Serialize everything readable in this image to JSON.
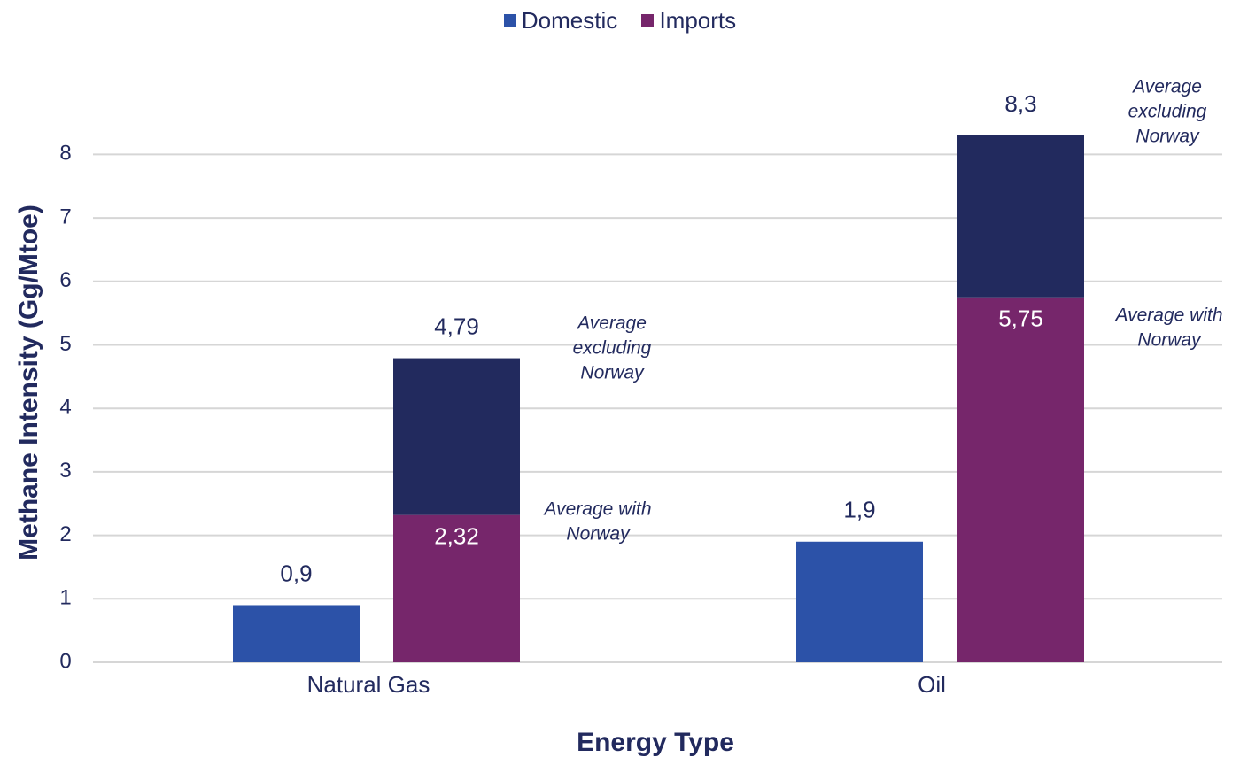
{
  "chart_data": {
    "type": "bar",
    "stacked": true,
    "categories": [
      "Natural Gas",
      "Oil"
    ],
    "xlabel": "Energy Type",
    "ylabel": "Methane Intensity (Gg/Mtoe)",
    "ylim": [
      0,
      8
    ],
    "yticks": [
      0,
      1,
      2,
      3,
      4,
      5,
      6,
      7,
      8
    ],
    "grid": true,
    "legend_position": "top",
    "legend": [
      {
        "name": "Domestic",
        "color": "#2c52a8"
      },
      {
        "name": "Imports",
        "color": "#76266b"
      }
    ],
    "bars": [
      {
        "category": "Natural Gas",
        "group": "Domestic",
        "segments": [
          {
            "value": 0.9,
            "color": "#2c52a8"
          }
        ],
        "label": "0,9"
      },
      {
        "category": "Natural Gas",
        "group": "Imports",
        "segments": [
          {
            "value": 2.32,
            "color": "#76266b",
            "label": "2,32",
            "note": [
              "Average with",
              "Norway"
            ]
          },
          {
            "value": 4.79,
            "color": "#222a5e",
            "label": "4,79",
            "note": [
              "Average",
              "excluding",
              "Norway"
            ]
          }
        ]
      },
      {
        "category": "Oil",
        "group": "Domestic",
        "segments": [
          {
            "value": 1.9,
            "color": "#2c52a8"
          }
        ],
        "label": "1,9"
      },
      {
        "category": "Oil",
        "group": "Imports",
        "segments": [
          {
            "value": 5.75,
            "color": "#76266b",
            "label": "5,75",
            "note": [
              "Average with",
              "Norway"
            ]
          },
          {
            "value": 8.3,
            "color": "#222a5e",
            "label": "8,3",
            "note": [
              "Average",
              "excluding",
              "Norway"
            ]
          }
        ]
      }
    ]
  }
}
